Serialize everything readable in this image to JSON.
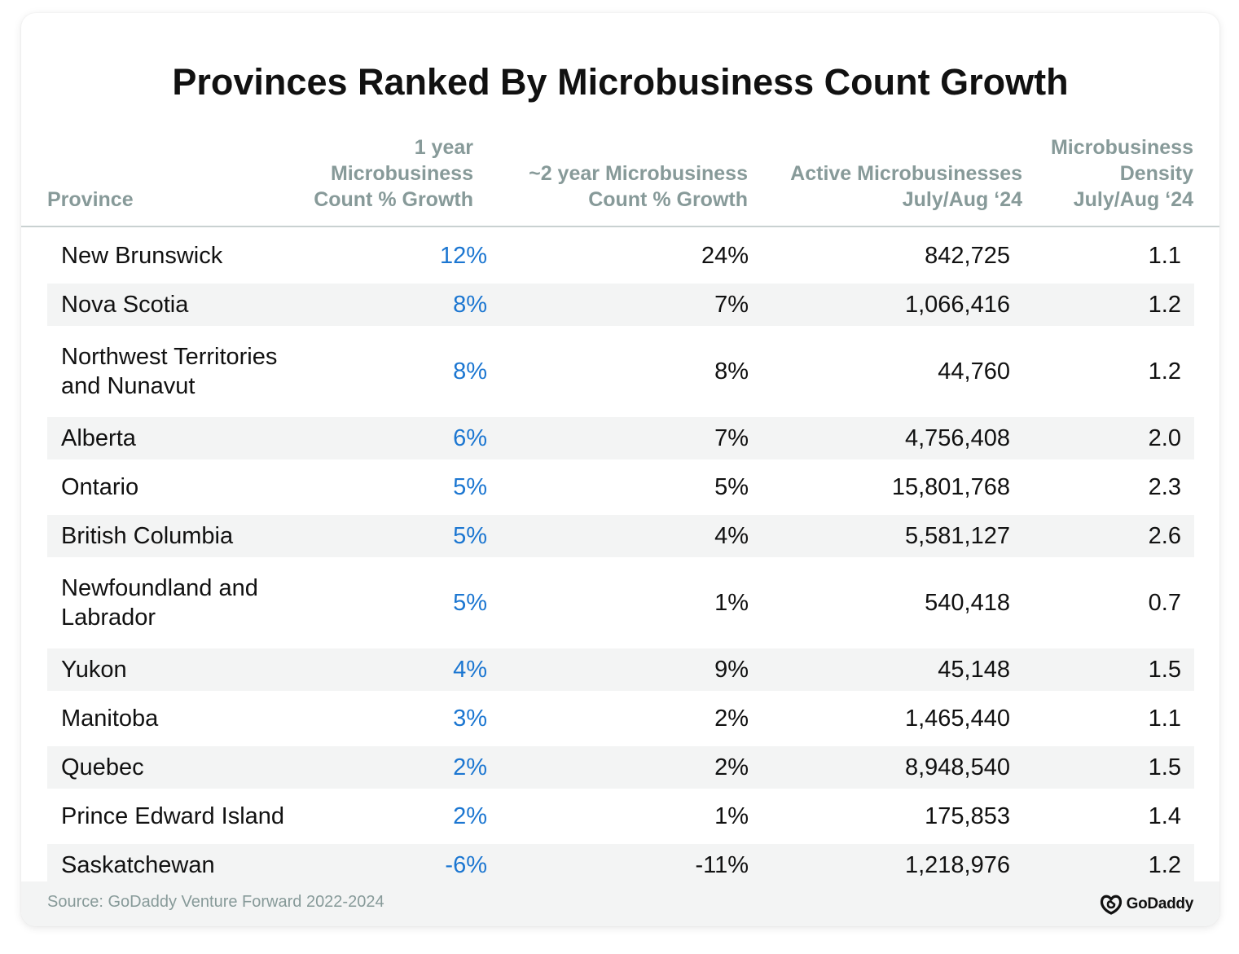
{
  "chart_data": {
    "type": "table",
    "title": "Provinces Ranked By Microbusiness Count Growth",
    "columns": [
      {
        "lines": [
          "Province"
        ]
      },
      {
        "lines": [
          "1 year",
          "Microbusiness",
          "Count % Growth"
        ]
      },
      {
        "lines": [
          "~2 year Microbusiness",
          "Count % Growth"
        ]
      },
      {
        "lines": [
          "Active Microbusinesses",
          "July/Aug ‘24"
        ]
      },
      {
        "lines": [
          "Microbusiness",
          "Density",
          "July/Aug ‘24"
        ]
      }
    ],
    "rows": [
      {
        "province": [
          "New Brunswick"
        ],
        "growth_1y": "12%",
        "growth_2y": "24%",
        "active": "842,725",
        "density": "1.1"
      },
      {
        "province": [
          "Nova Scotia"
        ],
        "growth_1y": "8%",
        "growth_2y": "7%",
        "active": "1,066,416",
        "density": "1.2"
      },
      {
        "province": [
          "Northwest Territories",
          "and Nunavut"
        ],
        "growth_1y": "8%",
        "growth_2y": "8%",
        "active": "44,760",
        "density": "1.2"
      },
      {
        "province": [
          "Alberta"
        ],
        "growth_1y": "6%",
        "growth_2y": "7%",
        "active": "4,756,408",
        "density": "2.0"
      },
      {
        "province": [
          "Ontario"
        ],
        "growth_1y": "5%",
        "growth_2y": "5%",
        "active": "15,801,768",
        "density": "2.3"
      },
      {
        "province": [
          "British Columbia"
        ],
        "growth_1y": "5%",
        "growth_2y": "4%",
        "active": "5,581,127",
        "density": "2.6"
      },
      {
        "province": [
          "Newfoundland and",
          "Labrador"
        ],
        "growth_1y": "5%",
        "growth_2y": "1%",
        "active": "540,418",
        "density": "0.7"
      },
      {
        "province": [
          "Yukon"
        ],
        "growth_1y": "4%",
        "growth_2y": "9%",
        "active": "45,148",
        "density": "1.5"
      },
      {
        "province": [
          "Manitoba"
        ],
        "growth_1y": "3%",
        "growth_2y": "2%",
        "active": "1,465,440",
        "density": "1.1"
      },
      {
        "province": [
          "Quebec"
        ],
        "growth_1y": "2%",
        "growth_2y": "2%",
        "active": "8,948,540",
        "density": "1.5"
      },
      {
        "province": [
          "Prince Edward Island"
        ],
        "growth_1y": "2%",
        "growth_2y": "1%",
        "active": "175,853",
        "density": "1.4"
      },
      {
        "province": [
          "Saskatchewan"
        ],
        "growth_1y": "-6%",
        "growth_2y": "-11%",
        "active": "1,218,976",
        "density": "1.2"
      }
    ]
  },
  "footer": {
    "source": "Source: GoDaddy Venture Forward 2022-2024",
    "logo_text": "GoDaddy",
    "logo_icon": "godaddy-logo-icon"
  },
  "colors": {
    "header_text": "#879a99",
    "growth_1y_text": "#1b76d1",
    "row_shade": "#f3f4f4",
    "body_text": "#111111"
  }
}
